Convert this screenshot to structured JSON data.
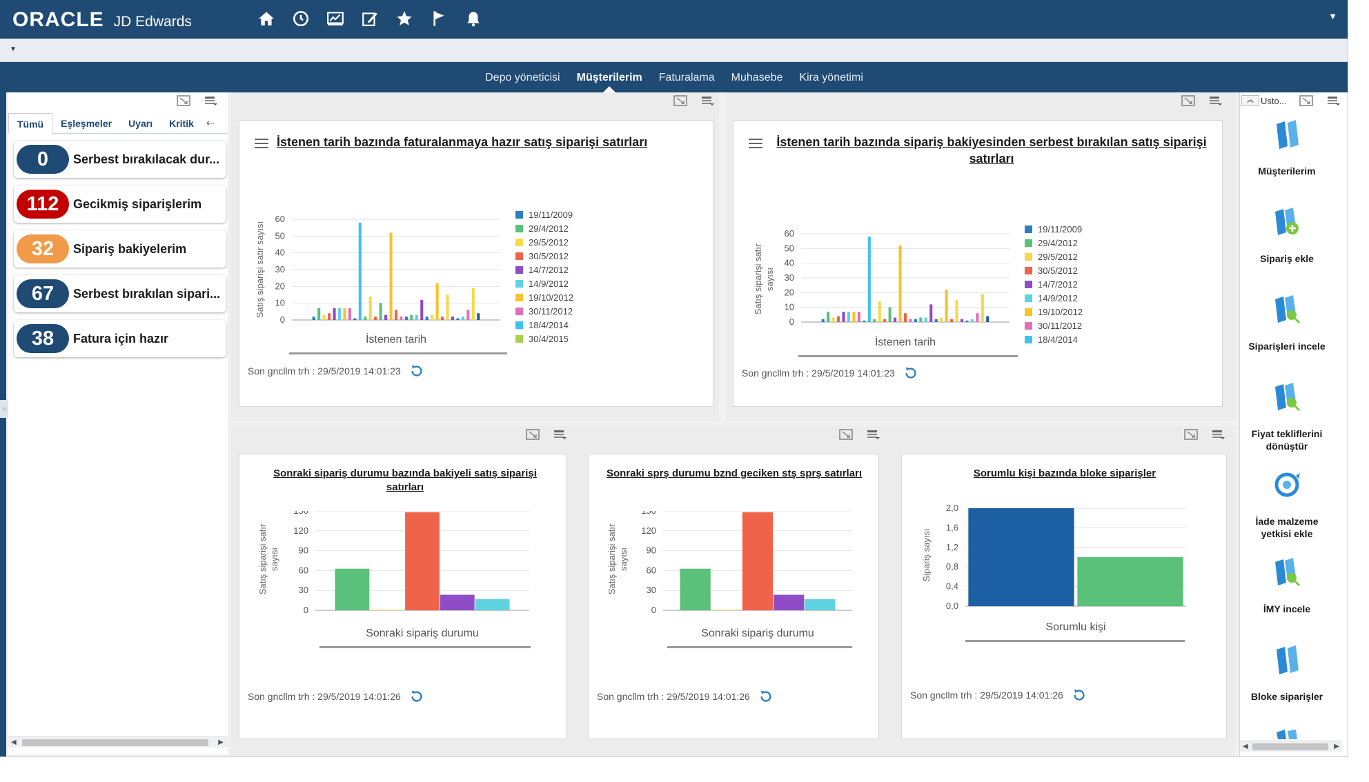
{
  "header": {
    "brand": "ORACLE",
    "product": "JD Edwards",
    "toolbar_icons": [
      "home-icon",
      "recent-icon",
      "dashboard-icon",
      "edit-icon",
      "favorites-icon",
      "flag-icon",
      "notifications-icon"
    ],
    "menu_caret": "▼",
    "sub_caret": "▼"
  },
  "nav": {
    "tabs": [
      {
        "label": "Depo yöneticisi",
        "active": false
      },
      {
        "label": "Müşterilerim",
        "active": true
      },
      {
        "label": "Faturalama",
        "active": false
      },
      {
        "label": "Muhasebe",
        "active": false
      },
      {
        "label": "Kira yönetimi",
        "active": false
      }
    ]
  },
  "filters": {
    "tabs": [
      "Tümü",
      "Eşleşmeler",
      "Uyarı",
      "Kritik"
    ],
    "more": "⇠",
    "kpis": [
      {
        "count": "0",
        "label": "Serbest bırakılacak dur...",
        "color": "#1e4a74"
      },
      {
        "count": "112",
        "label": "Gecikmiş siparişlerim",
        "color": "#c30000"
      },
      {
        "count": "32",
        "label": "Sipariş bakiyelerim",
        "color": "#f19a4a"
      },
      {
        "count": "67",
        "label": "Serbest bırakılan sipari...",
        "color": "#1e4a74"
      },
      {
        "count": "38",
        "label": "Fatura için hazır",
        "color": "#1e4a74"
      }
    ]
  },
  "side_toggle": "»",
  "updated_label": "Son gncllm trh : 29/5/2019 14:01:23",
  "updated_label_2": "Son gncllm trh : 29/5/2019 14:01:26",
  "palette": {
    "c1": "#2a7fc2",
    "c2": "#59c17a",
    "c3": "#f6d84f",
    "c4": "#ee6349",
    "c5": "#8e4cc7",
    "c6": "#5ed3e0",
    "c7": "#f8c22e",
    "c8": "#e36fb8",
    "c9": "#3ec2f0",
    "c10": "#a7d04f",
    "c11": "#1d5fa3"
  },
  "chart_data": [
    {
      "type": "bar",
      "title": "İstenen tarih bazında faturalanmaya hazır satış siparişi satırları",
      "xlabel": "İstenen tarih",
      "ylabel": "Satış siparişi satır sayısı",
      "ylim": [
        0,
        60
      ],
      "yticks": [
        "0",
        "10",
        "20",
        "30",
        "40",
        "50",
        "60"
      ],
      "legend": [
        "19/11/2009",
        "29/4/2012",
        "29/5/2012",
        "30/5/2012",
        "14/7/2012",
        "14/9/2012",
        "19/10/2012",
        "30/11/2012",
        "18/4/2014",
        "30/4/2015"
      ],
      "legend_position": "right",
      "values": [
        2,
        7,
        3,
        4,
        7,
        7,
        7,
        7,
        1,
        58,
        2,
        14,
        2,
        10,
        3,
        52,
        6,
        2,
        2,
        3,
        3,
        12,
        2,
        3,
        22,
        2,
        15,
        2,
        1,
        2,
        6,
        19,
        4
      ],
      "colors_order": [
        "c1",
        "c2",
        "c3",
        "c4",
        "c5",
        "c6",
        "c7",
        "c8",
        "c1",
        "c9",
        "c2",
        "c3",
        "c4",
        "c2",
        "c5",
        "c7",
        "c4",
        "c8",
        "c1",
        "c2",
        "c6",
        "c5",
        "c1",
        "c3",
        "c7",
        "c4",
        "c3",
        "c5",
        "c1",
        "c6",
        "c8",
        "c3",
        "c11"
      ]
    },
    {
      "type": "bar",
      "title": "İstenen tarih bazında sipariş bakiyesinden serbest bırakılan satış siparişi satırları",
      "xlabel": "İstenen tarih",
      "ylabel": "Satış siparişi satır sayısı",
      "ylim": [
        0,
        60
      ],
      "yticks": [
        "0",
        "10",
        "20",
        "30",
        "40",
        "50",
        "60"
      ],
      "legend": [
        "19/11/2009",
        "29/4/2012",
        "29/5/2012",
        "30/5/2012",
        "14/7/2012",
        "14/9/2012",
        "19/10/2012",
        "30/11/2012",
        "18/4/2014"
      ],
      "legend_position": "right",
      "values": [
        2,
        7,
        3,
        4,
        7,
        7,
        7,
        7,
        1,
        58,
        2,
        14,
        2,
        10,
        3,
        52,
        6,
        2,
        2,
        3,
        3,
        12,
        2,
        3,
        22,
        2,
        15,
        2,
        1,
        2,
        6,
        19,
        4
      ],
      "colors_order": [
        "c1",
        "c2",
        "c3",
        "c4",
        "c5",
        "c6",
        "c7",
        "c8",
        "c1",
        "c9",
        "c2",
        "c3",
        "c4",
        "c2",
        "c5",
        "c7",
        "c4",
        "c8",
        "c1",
        "c2",
        "c6",
        "c5",
        "c1",
        "c3",
        "c7",
        "c4",
        "c3",
        "c5",
        "c1",
        "c6",
        "c8",
        "c3",
        "c11"
      ]
    },
    {
      "type": "bar",
      "title": "Sonraki sipariş durumu bazında bakiyeli satış siparişi satırları",
      "xlabel": "Sonraki sipariş durumu",
      "ylabel": "Satış siparişi satır sayısı",
      "ylim": [
        0,
        160
      ],
      "yticks": [
        "0",
        "30",
        "60",
        "90",
        "120",
        "150"
      ],
      "values": [
        67,
        1,
        158,
        25,
        18
      ],
      "colors_order": [
        "c2",
        "c3",
        "c4",
        "c5",
        "c6"
      ]
    },
    {
      "type": "bar",
      "title": "Sonraki sprş durumu bznd geciken stş sprş satırları",
      "xlabel": "Sonraki sipariş durumu",
      "ylabel": "Satış siparişi satır sayısı",
      "ylim": [
        0,
        160
      ],
      "yticks": [
        "0",
        "30",
        "60",
        "90",
        "120",
        "150"
      ],
      "values": [
        67,
        1,
        158,
        25,
        18
      ],
      "colors_order": [
        "c2",
        "c3",
        "c4",
        "c5",
        "c6"
      ]
    },
    {
      "type": "bar",
      "title": "Sorumlu kişi bazında bloke siparişler",
      "xlabel": "Sorumlu kişi",
      "ylabel": "Sipariş sayısı",
      "ylim": [
        0,
        2.0
      ],
      "yticks": [
        "0,0",
        "0,4",
        "0,8",
        "1,2",
        "1,6",
        "2,0"
      ],
      "values": [
        2,
        1
      ],
      "colors_order": [
        "c11",
        "c2"
      ]
    }
  ],
  "rail": {
    "top_label": "Usto...",
    "items": [
      {
        "label": "Müşterilerim",
        "icon": "books-icon"
      },
      {
        "label": "Sipariş ekle",
        "icon": "add-order-icon"
      },
      {
        "label": "Siparişleri incele",
        "icon": "review-orders-icon"
      },
      {
        "label": "Fiyat tekliflerini dönüştür",
        "icon": "convert-quotes-icon"
      },
      {
        "label": "İade malzeme yetkisi ekle",
        "icon": "return-authorization-icon"
      },
      {
        "label": "İMY incele",
        "icon": "review-rma-icon"
      },
      {
        "label": "Bloke siparişler",
        "icon": "held-orders-icon"
      }
    ]
  }
}
